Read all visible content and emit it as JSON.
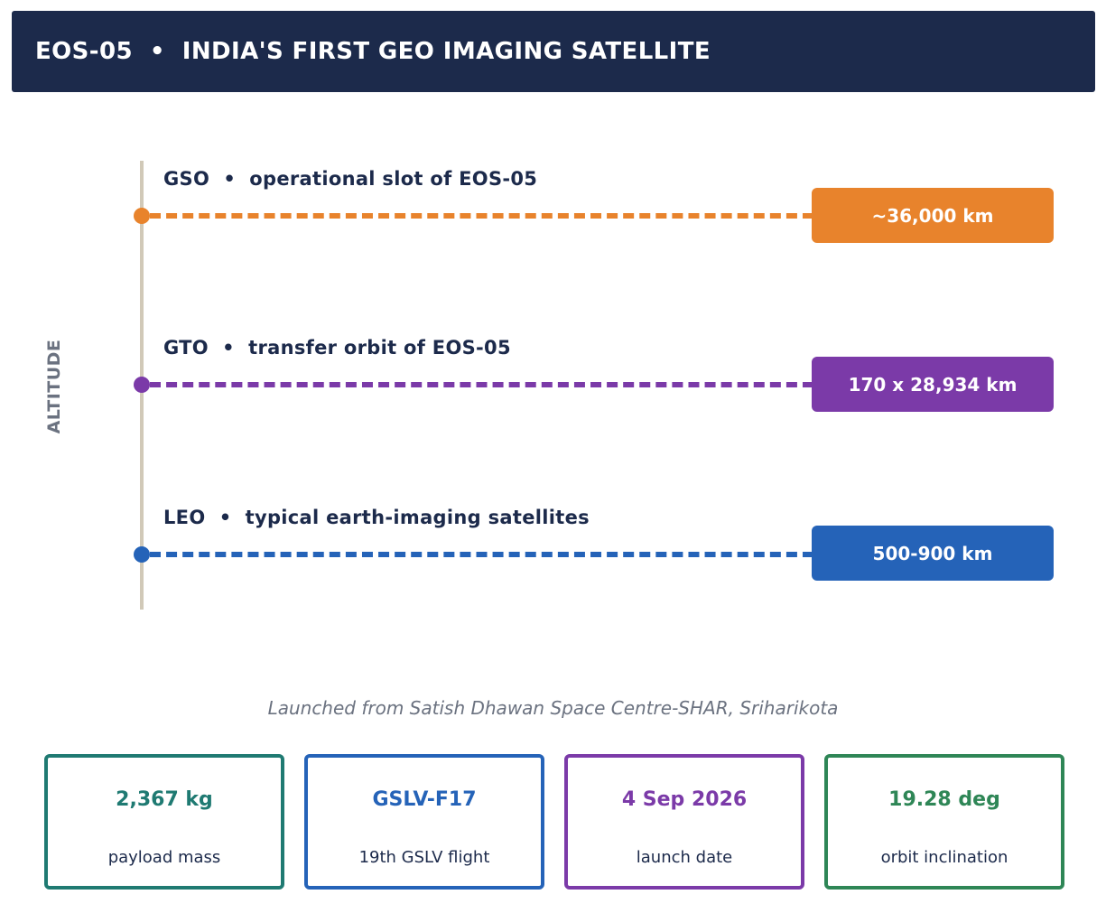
{
  "header": {
    "title": "EOS-05  •  INDIA'S FIRST GEO IMAGING SATELLITE"
  },
  "axis": {
    "label": "ALTITUDE"
  },
  "orbits": [
    {
      "label": "GSO  •  operational slot of EOS-05",
      "value": "~36,000 km",
      "color": "#e8832c"
    },
    {
      "label": "GTO  •  transfer orbit of EOS-05",
      "value": "170 x 28,934 km",
      "color": "#7b3aa8"
    },
    {
      "label": "LEO  •  typical earth-imaging satellites",
      "value": "500-900 km",
      "color": "#2563b8"
    }
  ],
  "footnote": "Launched from Satish Dhawan Space Centre-SHAR, Sriharikota",
  "stats": [
    {
      "value": "2,367 kg",
      "caption": "payload mass",
      "color": "#1f7a72"
    },
    {
      "value": "GSLV-F17",
      "caption": "19th GSLV flight",
      "color": "#2563b8"
    },
    {
      "value": "4 Sep 2026",
      "caption": "launch date",
      "color": "#7b3aa8"
    },
    {
      "value": "19.28 deg",
      "caption": "orbit inclination",
      "color": "#2e8656"
    }
  ]
}
